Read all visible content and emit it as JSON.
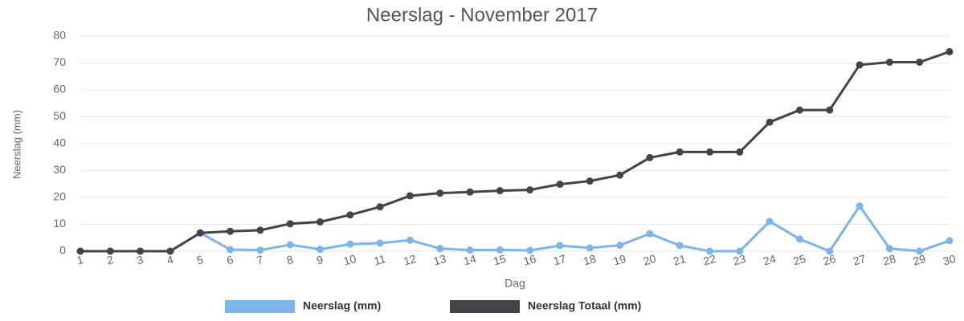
{
  "chart_data": {
    "type": "line",
    "title": "Neerslag - November 2017",
    "x_label": "Dag",
    "y_label": "Neerslag (mm)",
    "categories": [
      "1",
      "2",
      "3",
      "4",
      "5",
      "6",
      "7",
      "8",
      "9",
      "10",
      "11",
      "12",
      "13",
      "14",
      "15",
      "16",
      "17",
      "18",
      "19",
      "20",
      "21",
      "22",
      "23",
      "24",
      "25",
      "26",
      "27",
      "28",
      "29",
      "30"
    ],
    "series": [
      {
        "name": "Neerslag (mm)",
        "color": "#7cb5ec",
        "values": [
          0,
          0,
          0,
          0,
          6.8,
          0.6,
          0.4,
          2.4,
          0.7,
          2.6,
          3.0,
          4.1,
          1.0,
          0.4,
          0.5,
          0.3,
          2.1,
          1.2,
          2.2,
          6.5,
          2.1,
          0,
          0,
          11.1,
          4.5,
          0,
          16.8,
          1.0,
          0,
          3.9
        ]
      },
      {
        "name": "Neerslag Totaal (mm)",
        "color": "#434348",
        "values": [
          0,
          0,
          0,
          0,
          6.8,
          7.4,
          7.8,
          10.2,
          10.9,
          13.5,
          16.5,
          20.6,
          21.6,
          22.0,
          22.5,
          22.8,
          24.9,
          26.1,
          28.3,
          34.8,
          36.9,
          36.9,
          36.9,
          48.0,
          52.5,
          52.5,
          69.3,
          70.3,
          70.3,
          74.2
        ]
      }
    ],
    "ylim": [
      0,
      80
    ],
    "yticks": [
      0,
      10,
      20,
      30,
      40,
      50,
      60,
      70,
      80
    ],
    "grid": true,
    "legend": "bottom"
  }
}
